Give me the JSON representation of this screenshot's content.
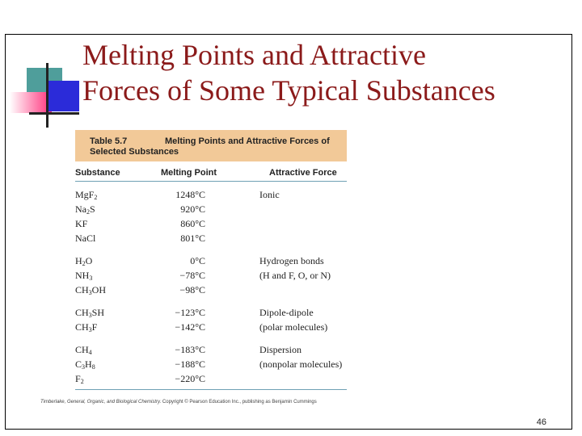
{
  "slide": {
    "title_line1": "Melting Points and Attractive",
    "title_line2": "Forces of Some Typical Substances",
    "page_number": "46"
  },
  "table": {
    "caption_prefix": "Table 5.7",
    "caption_text": "Melting Points and Attractive Forces of",
    "caption_line2": "Selected Substances",
    "columns": [
      "Substance",
      "Melting Point",
      "Attractive Force"
    ],
    "rows": [
      {
        "formula": [
          [
            "Mg"
          ],
          [
            "F",
            "2"
          ]
        ],
        "mp": "1248°C",
        "force": "Ionic"
      },
      {
        "formula": [
          [
            "Na",
            "2"
          ],
          [
            "S"
          ]
        ],
        "mp": "920°C",
        "force": ""
      },
      {
        "formula": [
          [
            "KF"
          ]
        ],
        "mp": "860°C",
        "force": ""
      },
      {
        "formula": [
          [
            "NaCl"
          ]
        ],
        "mp": "801°C",
        "force": ""
      },
      {
        "formula": [
          [
            "H",
            "2"
          ],
          [
            "O"
          ]
        ],
        "mp": "0°C",
        "force": "Hydrogen bonds"
      },
      {
        "formula": [
          [
            "NH",
            "3"
          ]
        ],
        "mp": "−78°C",
        "force": "(H and F, O, or N)"
      },
      {
        "formula": [
          [
            "CH",
            "3"
          ],
          [
            "OH"
          ]
        ],
        "mp": "−98°C",
        "force": ""
      },
      {
        "formula": [
          [
            "CH",
            "3"
          ],
          [
            "SH"
          ]
        ],
        "mp": "−123°C",
        "force": "Dipole-dipole"
      },
      {
        "formula": [
          [
            "CH",
            "3"
          ],
          [
            "F"
          ]
        ],
        "mp": "−142°C",
        "force": "(polar molecules)"
      },
      {
        "formula": [
          [
            "CH",
            "4"
          ]
        ],
        "mp": "−183°C",
        "force": "Dispersion"
      },
      {
        "formula": [
          [
            "C",
            "3"
          ],
          [
            "H",
            "8"
          ]
        ],
        "mp": "−188°C",
        "force": "(nonpolar molecules)"
      },
      {
        "formula": [
          [
            "F",
            "2"
          ]
        ],
        "mp": "−220°C",
        "force": ""
      }
    ]
  },
  "credit": {
    "source_title": "Timberlake, General, Organic, and Biological Chemistry.",
    "copyright": "Copyright © Pearson Education Inc., publishing as Benjamin Cummings"
  },
  "colors": {
    "title": "#8b1a1a",
    "header_band": "#f2c998",
    "rule": "#6fa0b4",
    "deco_teal": "#4f9e9b",
    "deco_blue": "#2b2bd9",
    "deco_pink": "#ff2f7a"
  }
}
